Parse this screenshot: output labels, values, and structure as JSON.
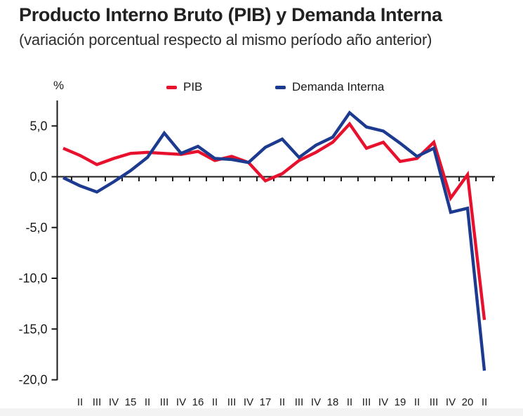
{
  "header": {
    "title": "Producto Interno Bruto (PIB) y Demanda Interna",
    "subtitle": "(variación porcentual respecto al mismo período año anterior)"
  },
  "y_axis_unit": "%",
  "legend": [
    {
      "label": "PIB",
      "color": "#e8112d"
    },
    {
      "label": "Demanda Interna",
      "color": "#1c3a8f"
    }
  ],
  "chart_data": {
    "type": "line",
    "title": "Producto Interno Bruto (PIB) y Demanda Interna",
    "subtitle": "(variación porcentual respecto al mismo período año anterior)",
    "ylabel": "%",
    "xlabel": "",
    "grid": false,
    "zero_baseline": true,
    "legend_position": "top",
    "ylim": [
      -20.5,
      7.5
    ],
    "y_ticks": [
      {
        "value": 5,
        "label": "5,0"
      },
      {
        "value": 0,
        "label": "0,0"
      },
      {
        "value": -5,
        "label": "-5,0"
      },
      {
        "value": -10,
        "label": "-10,0"
      },
      {
        "value": -15,
        "label": "-15,0"
      },
      {
        "value": -20,
        "label": "-20,0"
      }
    ],
    "x_tick_labels": [
      "II",
      "III",
      "IV",
      "15",
      "II",
      "III",
      "IV",
      "16",
      "II",
      "III",
      "IV",
      "17",
      "II",
      "III",
      "IV",
      "18",
      "II",
      "III",
      "IV",
      "19",
      "II",
      "III",
      "IV",
      "20",
      "II"
    ],
    "x_label_offset": 1,
    "periods": [
      "2014-I",
      "2014-II",
      "2014-III",
      "2014-IV",
      "2015-I",
      "2015-II",
      "2015-III",
      "2015-IV",
      "2016-I",
      "2016-II",
      "2016-III",
      "2016-IV",
      "2017-I",
      "2017-II",
      "2017-III",
      "2017-IV",
      "2018-I",
      "2018-II",
      "2018-III",
      "2018-IV",
      "2019-I",
      "2019-II",
      "2019-III",
      "2019-IV",
      "2020-I",
      "2020-II"
    ],
    "series": [
      {
        "name": "PIB",
        "color": "#e8112d",
        "values": [
          2.8,
          2.1,
          1.2,
          1.8,
          2.3,
          2.4,
          2.3,
          2.2,
          2.5,
          1.6,
          2.0,
          1.4,
          -0.4,
          0.3,
          1.6,
          2.4,
          3.4,
          5.2,
          2.8,
          3.4,
          1.5,
          1.8,
          3.4,
          -2.1,
          0.2,
          -14.1
        ]
      },
      {
        "name": "Demanda Interna",
        "color": "#1c3a8f",
        "values": [
          -0.1,
          -0.9,
          -1.5,
          -0.5,
          0.6,
          1.9,
          4.3,
          2.3,
          3.0,
          1.8,
          1.7,
          1.4,
          2.9,
          3.7,
          1.9,
          3.1,
          3.9,
          6.3,
          4.9,
          4.5,
          3.3,
          2.0,
          2.8,
          -3.5,
          -3.1,
          -19.1
        ]
      }
    ],
    "axis_color": "#1a1a1a"
  }
}
